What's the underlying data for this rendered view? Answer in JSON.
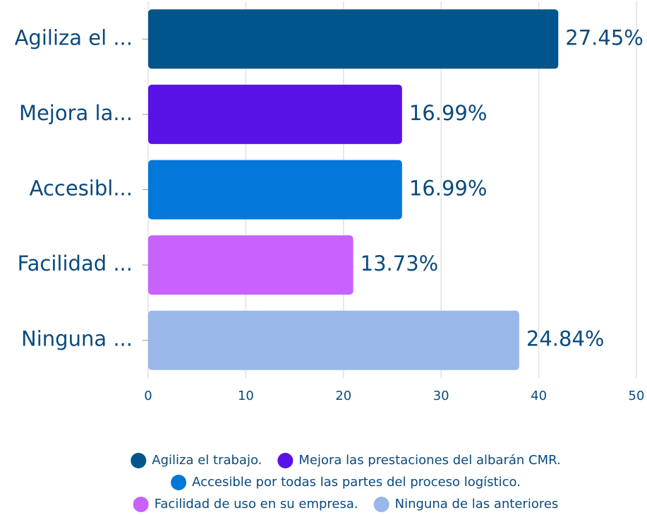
{
  "chart_data": {
    "type": "bar",
    "orientation": "horizontal",
    "categories": [
      "Agiliza el ...",
      "Mejora la...",
      "Accesibl...",
      "Facilidad ...",
      "Ninguna ..."
    ],
    "values": [
      42,
      26,
      26,
      21,
      38
    ],
    "percent_labels": [
      "27.45%",
      "16.99%",
      "16.99%",
      "13.73%",
      "24.84%"
    ],
    "colors": [
      "#00558c",
      "#5912e6",
      "#0477db",
      "#c762fd",
      "#9ab7ea"
    ],
    "legend": [
      "Agiliza el trabajo.",
      "Mejora las prestaciones del albarán CMR.",
      "Accesible por todas las partes del proceso logístico.",
      "Facilidad de uso en su empresa.",
      "Ninguna de las anteriores"
    ],
    "xlim": [
      0,
      50
    ],
    "xticks": [
      0,
      10,
      20,
      30,
      40,
      50
    ],
    "grid": true
  }
}
